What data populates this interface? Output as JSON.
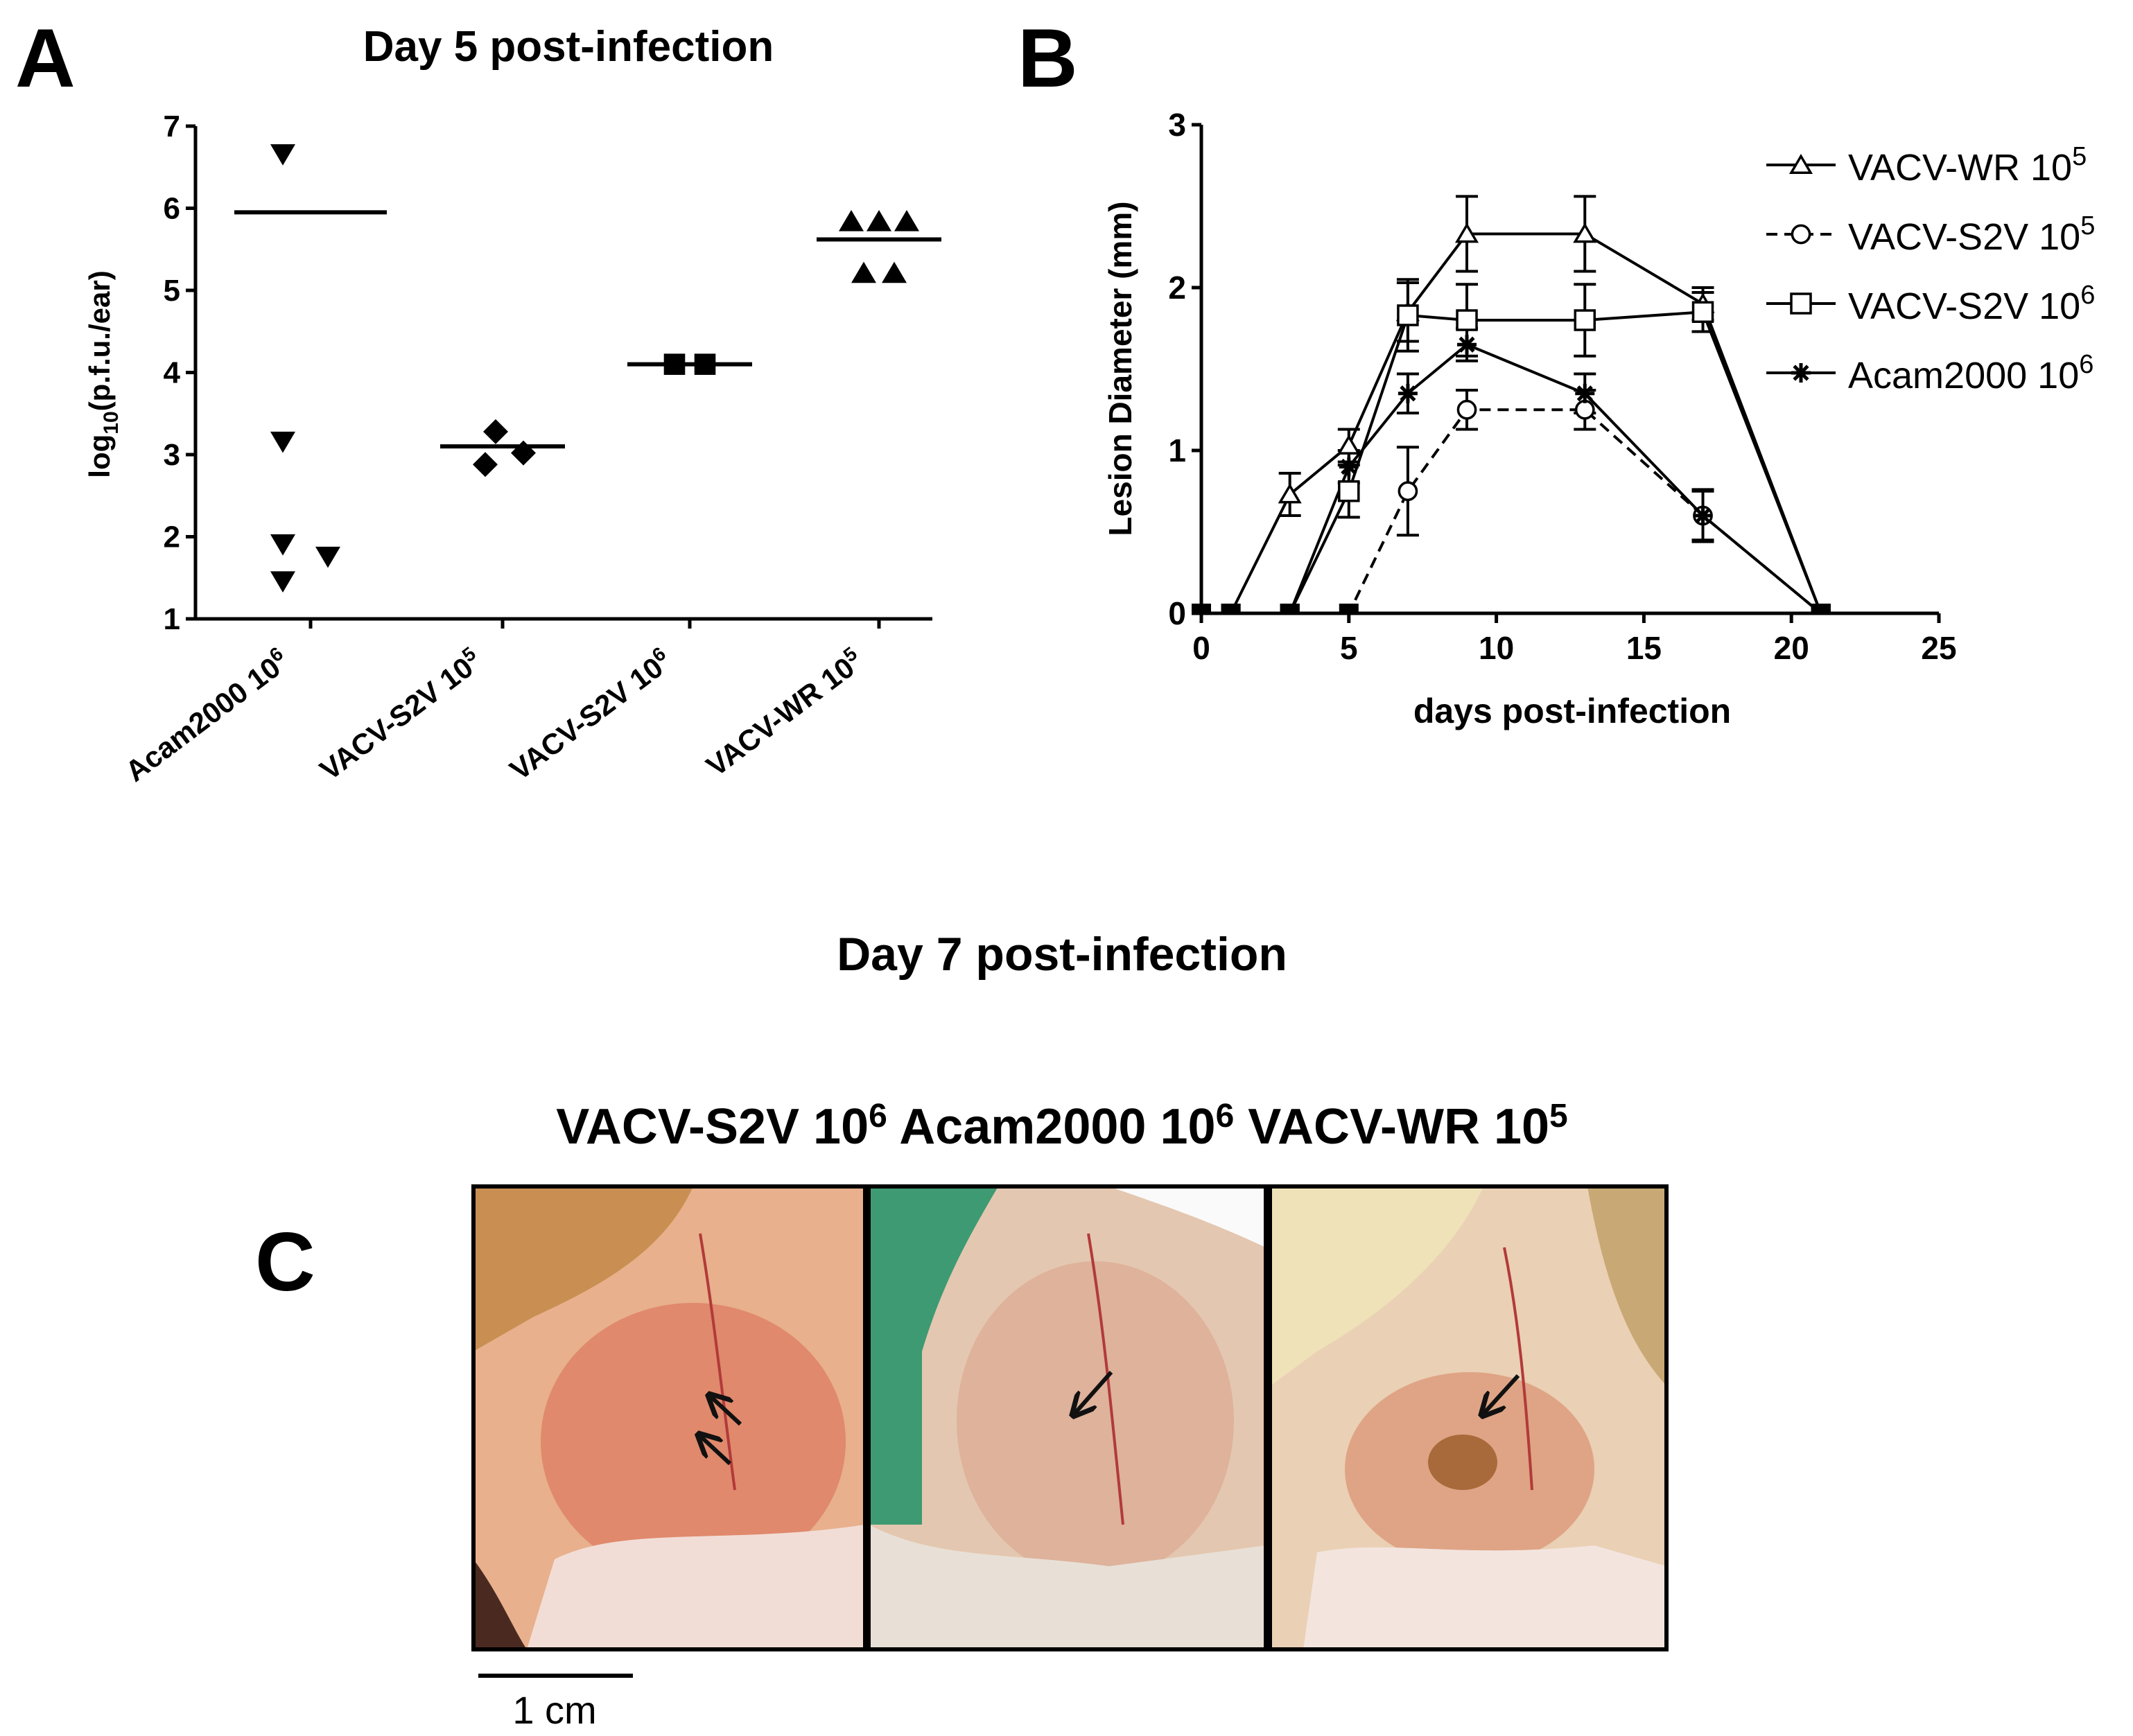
{
  "panel_labels": {
    "a": "A",
    "b": "B",
    "c": "C"
  },
  "panel_c": {
    "heading": "Day 7 post-infection",
    "photo_labels": [
      {
        "name": "VACV-S2V",
        "exp": "6"
      },
      {
        "name": "Acam2000",
        "exp": "6"
      },
      {
        "name": "VACV-WR",
        "exp": "5"
      }
    ],
    "scale_bar_label": "1 cm",
    "photo_tones": [
      "#d96a52",
      "#dba38e",
      "#d88c6c"
    ]
  },
  "chart_data": [
    {
      "id": "A",
      "type": "scatter",
      "title": "Day 5 post-infection",
      "ylabel": "log10(p.f.u./ear)",
      "ylabel_base": "log",
      "ylabel_sub": "10",
      "ylabel_rest": "(p.f.u./ear)",
      "ylim": [
        1,
        7
      ],
      "yticks": [
        1,
        2,
        3,
        4,
        5,
        6,
        7
      ],
      "categories": [
        {
          "name": "Acam2000 10",
          "exp": "6"
        },
        {
          "name": "VACV-S2V 10",
          "exp": "5"
        },
        {
          "name": "VACV-S2V 10",
          "exp": "6"
        },
        {
          "name": "VACV-WR 10",
          "exp": "5"
        }
      ],
      "groups": [
        {
          "marker": "triangle-down",
          "mean": 5.95,
          "points": [
            6.65,
            3.15,
            1.9,
            1.75,
            1.45
          ]
        },
        {
          "marker": "diamond",
          "mean": 3.1,
          "points": [
            3.28,
            3.02,
            2.88
          ]
        },
        {
          "marker": "square",
          "mean": 4.1,
          "points": [
            4.1,
            4.1
          ]
        },
        {
          "marker": "triangle-up",
          "mean": 5.62,
          "points": [
            5.85,
            5.85,
            5.85,
            5.22,
            5.22
          ]
        }
      ]
    },
    {
      "id": "B",
      "type": "line",
      "ylabel": "Lesion Diameter (mm)",
      "xlabel": "days post-infection",
      "xlim": [
        0,
        25
      ],
      "ylim": [
        0,
        3
      ],
      "xticks": [
        0,
        5,
        10,
        15,
        20,
        25
      ],
      "yticks": [
        0,
        1,
        2,
        3
      ],
      "legend_position": "top-right",
      "series": [
        {
          "name": "VACV-WR 10",
          "exp": "5",
          "marker": "triangle-open",
          "dashed": false,
          "x": [
            0,
            1,
            3,
            5,
            7,
            9,
            13,
            17,
            21
          ],
          "y": [
            0,
            0,
            0.73,
            1.03,
            1.85,
            2.33,
            2.33,
            1.9,
            0
          ],
          "err": [
            0,
            0,
            0.13,
            0.1,
            0.18,
            0.23,
            0.23,
            0.1,
            0
          ]
        },
        {
          "name": "VACV-S2V 10",
          "exp": "5",
          "marker": "circle-open",
          "dashed": true,
          "x": [
            0,
            1,
            3,
            5,
            7,
            9,
            13,
            17,
            21
          ],
          "y": [
            0,
            0,
            0,
            0,
            0.75,
            1.25,
            1.25,
            0.6,
            0
          ],
          "err": [
            0,
            0,
            0,
            0,
            0.27,
            0.12,
            0.12,
            0.15,
            0
          ]
        },
        {
          "name": "VACV-S2V 10",
          "exp": "6",
          "marker": "square-open",
          "dashed": false,
          "x": [
            0,
            1,
            3,
            5,
            7,
            9,
            13,
            17,
            21
          ],
          "y": [
            0,
            0,
            0,
            0.75,
            1.83,
            1.8,
            1.8,
            1.85,
            0
          ],
          "err": [
            0,
            0,
            0,
            0.16,
            0.22,
            0.22,
            0.22,
            0.12,
            0
          ]
        },
        {
          "name": "Acam2000 10",
          "exp": "6",
          "marker": "star",
          "dashed": false,
          "x": [
            0,
            1,
            3,
            5,
            7,
            9,
            13,
            17,
            21
          ],
          "y": [
            0,
            0,
            0,
            0.9,
            1.35,
            1.65,
            1.35,
            0.6,
            0
          ],
          "err": [
            0,
            0,
            0,
            0.1,
            0.12,
            0.1,
            0.12,
            0.16,
            0
          ]
        }
      ]
    }
  ]
}
